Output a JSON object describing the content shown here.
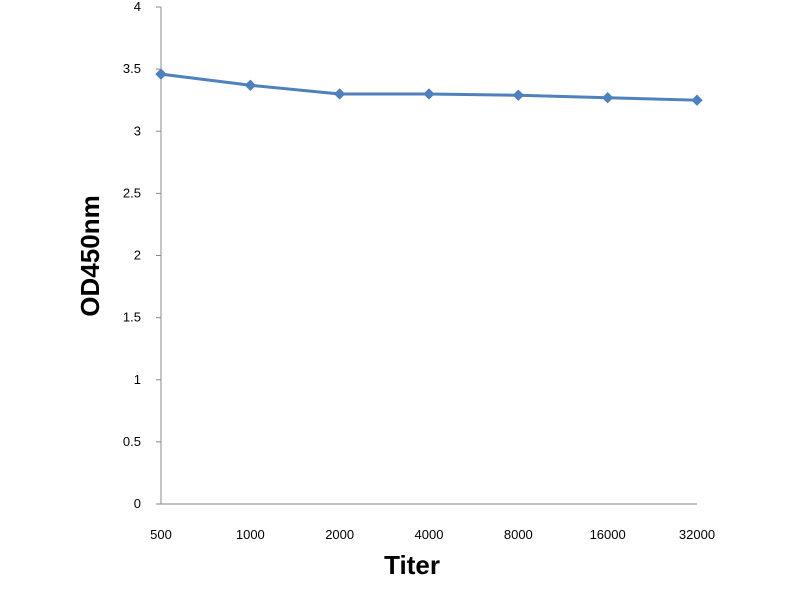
{
  "chart_data": {
    "type": "line",
    "categories": [
      "500",
      "1000",
      "2000",
      "4000",
      "8000",
      "16000",
      "32000"
    ],
    "series": [
      {
        "values": [
          3.46,
          3.37,
          3.3,
          3.3,
          3.29,
          3.27,
          3.25
        ],
        "color": "#4F81BD",
        "marker": "diamond"
      }
    ],
    "xlabel": "Titer",
    "ylabel": "OD450nm",
    "ylim": [
      0,
      4
    ],
    "yticks": [
      0,
      0.5,
      1,
      1.5,
      2,
      2.5,
      3,
      3.5,
      4
    ],
    "grid": false,
    "legend": "none"
  }
}
